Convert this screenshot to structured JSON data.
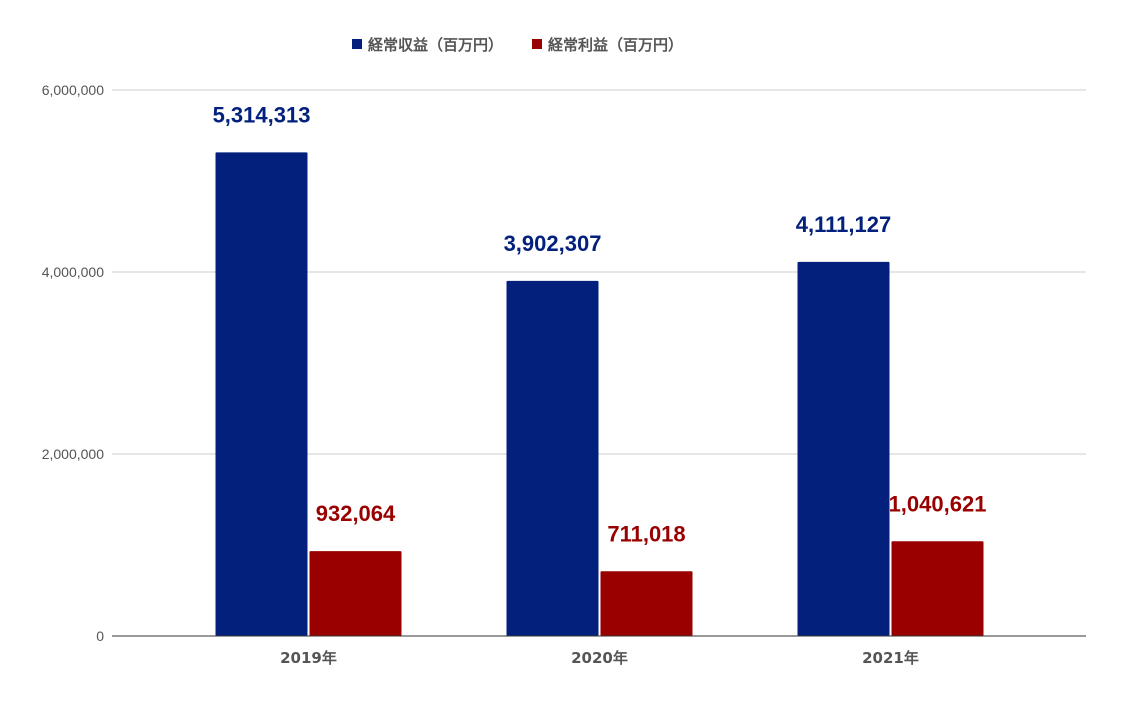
{
  "chart_data": {
    "type": "bar",
    "categories": [
      "2019年",
      "2020年",
      "2021年"
    ],
    "series": [
      {
        "name": "経常収益（百万円）",
        "color": "#03217c",
        "label_color": "#03217c",
        "values": [
          5314313,
          3902307,
          4111127
        ],
        "labels": [
          "5,314,313",
          "3,902,307",
          "4,111,127"
        ]
      },
      {
        "name": "経常利益（百万円）",
        "color": "#990000",
        "label_color": "#990000",
        "values": [
          932064,
          711018,
          1040621
        ],
        "labels": [
          "932,064",
          "711,018",
          "1,040,621"
        ]
      }
    ],
    "y_ticks": [
      0,
      2000000,
      4000000,
      6000000
    ],
    "y_tick_labels": [
      "0",
      "2,000,000",
      "4,000,000",
      "6,000,000"
    ],
    "ylim": [
      0,
      6000000
    ],
    "grid": true,
    "legend_position": "top-center"
  }
}
